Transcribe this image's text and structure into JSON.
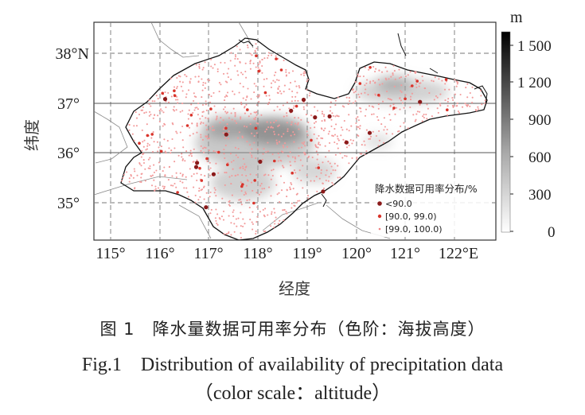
{
  "map": {
    "x_ticks": [
      "115°",
      "116°",
      "117°",
      "118°",
      "119°",
      "120°",
      "121°",
      "122°E"
    ],
    "y_ticks": [
      "38°N",
      "37°",
      "36°",
      "35°"
    ],
    "x_title": "经度",
    "y_title": "纬度",
    "colorbar": {
      "unit": "m",
      "ticks": [
        "1 500",
        "1 200",
        "900",
        "600",
        "300",
        "0"
      ],
      "range": [
        0,
        1600
      ]
    },
    "legend": {
      "title": "降水数据可用率分布/%",
      "items": [
        {
          "label": "<90.0",
          "color": "#8b1a1a"
        },
        {
          "label": "[90.0, 99.0)",
          "color": "#d9342b"
        },
        {
          "label": "[99.0, 100.0)",
          "color": "#f4a2a2"
        }
      ]
    }
  },
  "caption": {
    "cn": "图 1　降水量数据可用率分布（色阶：海拔高度）",
    "en_line1": "Fig.1　Distribution of availability of precipitation data",
    "en_line2": "（color scale：altitude）"
  }
}
